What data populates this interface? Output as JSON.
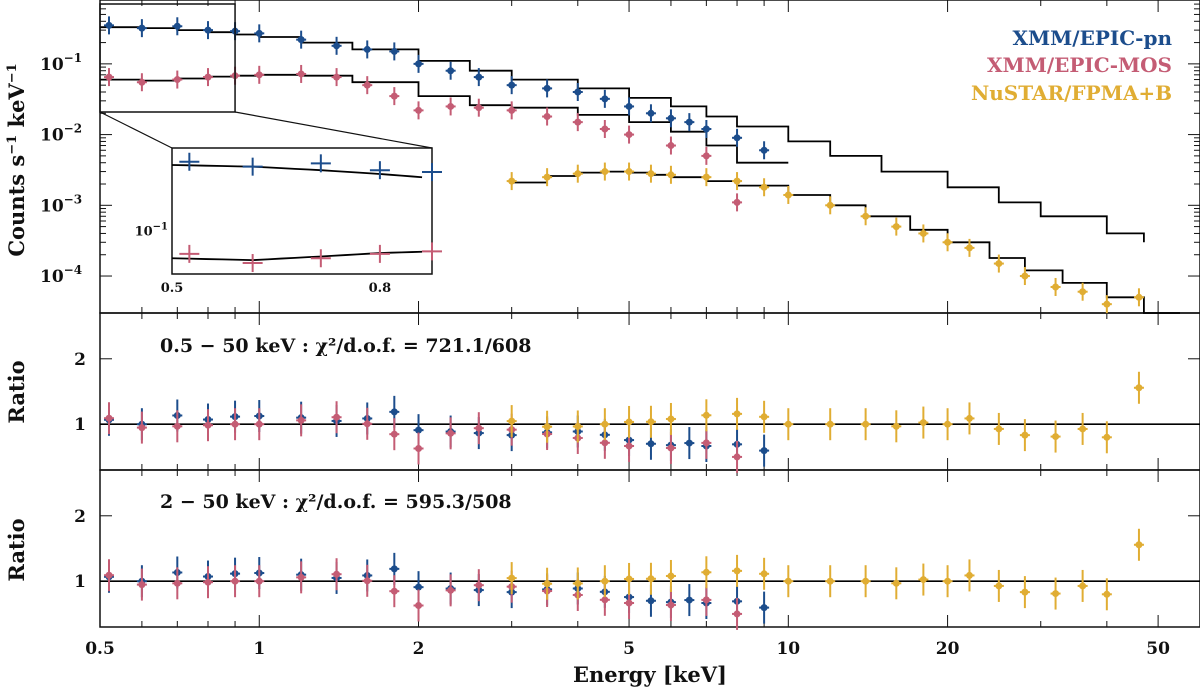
{
  "chart_data": {
    "type": "scatter",
    "xlabel": "Energy [keV]",
    "xscale": "log",
    "xlim": [
      0.5,
      60
    ],
    "x_tick_labels": [
      "0.5",
      "1",
      "2",
      "5",
      "10",
      "20",
      "50"
    ],
    "colors": {
      "pn": "#1c4d8c",
      "mos": "#c45c74",
      "nustar": "#e0ad33",
      "model": "#000000"
    },
    "top_panel": {
      "ylabel_main": "Counts s",
      "ylabel_exp1": "−1",
      "ylabel_mid": " keV",
      "ylabel_exp2": "−1",
      "yscale": "log",
      "ylim": [
        3e-05,
        0.8
      ],
      "y_tick_labels": [
        {
          "base": "10",
          "exp": "−1"
        },
        {
          "base": "10",
          "exp": "−2"
        },
        {
          "base": "10",
          "exp": "−3"
        },
        {
          "base": "10",
          "exp": "−4"
        }
      ],
      "legend": [
        "XMM/EPIC-pn",
        "XMM/EPIC-MOS",
        "NuSTAR/FPMA+B"
      ],
      "series": [
        {
          "name": "XMM/EPIC-pn",
          "key": "pn",
          "x": [
            0.52,
            0.6,
            0.7,
            0.8,
            0.9,
            1.0,
            1.2,
            1.4,
            1.6,
            1.8,
            2.0,
            2.3,
            2.6,
            3.0,
            3.5,
            4.0,
            4.5,
            5.0,
            5.5,
            6.0,
            6.5,
            7.0,
            8.0,
            9.0
          ],
          "y": [
            0.35,
            0.32,
            0.34,
            0.3,
            0.29,
            0.27,
            0.22,
            0.18,
            0.16,
            0.15,
            0.1,
            0.08,
            0.065,
            0.05,
            0.045,
            0.04,
            0.032,
            0.025,
            0.02,
            0.017,
            0.015,
            0.012,
            0.009,
            0.006
          ]
        },
        {
          "name": "XMM/EPIC-MOS",
          "key": "mos",
          "x": [
            0.52,
            0.6,
            0.7,
            0.8,
            0.9,
            1.0,
            1.2,
            1.4,
            1.6,
            1.8,
            2.0,
            2.3,
            2.6,
            3.0,
            3.5,
            4.0,
            4.5,
            5.0,
            6.0,
            7.0,
            8.0
          ],
          "y": [
            0.065,
            0.055,
            0.06,
            0.065,
            0.068,
            0.07,
            0.072,
            0.065,
            0.05,
            0.035,
            0.022,
            0.025,
            0.024,
            0.022,
            0.018,
            0.015,
            0.012,
            0.01,
            0.007,
            0.005,
            0.0011
          ]
        },
        {
          "name": "NuSTAR/FPMA+B",
          "key": "nustar",
          "x": [
            3.0,
            3.5,
            4.0,
            4.5,
            5.0,
            5.5,
            6.0,
            7.0,
            8.0,
            9.0,
            10,
            12,
            14,
            16,
            18,
            20,
            22,
            25,
            28,
            32,
            36,
            40,
            46
          ],
          "y": [
            0.0022,
            0.0025,
            0.0028,
            0.003,
            0.003,
            0.0028,
            0.0027,
            0.0025,
            0.0022,
            0.0018,
            0.0014,
            0.001,
            0.0007,
            0.0005,
            0.0004,
            0.0003,
            0.00025,
            0.00015,
            0.0001,
            7e-05,
            6e-05,
            4e-05,
            5e-05
          ]
        }
      ],
      "model": {
        "x": [
          0.5,
          0.6,
          0.7,
          0.8,
          0.9,
          1.0,
          1.2,
          1.5,
          2.0,
          2.5,
          3.0,
          4.0,
          5.0,
          6.0,
          7.0,
          8.0,
          10,
          12,
          15,
          20,
          25,
          30,
          40,
          47
        ],
        "pn": [
          0.33,
          0.32,
          0.3,
          0.28,
          0.26,
          0.24,
          0.2,
          0.16,
          0.11,
          0.08,
          0.06,
          0.045,
          0.033,
          0.025,
          0.018,
          0.013,
          0.008,
          0.005,
          0.003,
          0.0018,
          0.0011,
          0.0007,
          0.0004,
          0.0003
        ],
        "mos": [
          0.06,
          0.058,
          0.062,
          0.066,
          0.068,
          0.07,
          0.068,
          0.055,
          0.035,
          0.026,
          0.024,
          0.019,
          0.015,
          0.011,
          0.007,
          0.004
        ],
        "nustar": [
          0.0021,
          0.0026,
          0.0029,
          0.003,
          0.0029,
          0.0027,
          0.0025,
          0.0022,
          0.0019,
          0.0014,
          0.001,
          0.0007,
          0.00045,
          0.0003,
          0.00018,
          0.00012,
          8e-05,
          5e-05,
          3e-05
        ]
      },
      "inset": {
        "xlim": [
          0.5,
          0.9
        ],
        "x_tick_labels": [
          "0.5",
          "0.8"
        ],
        "y_tick_label": {
          "base": "10",
          "exp": "−1"
        }
      }
    },
    "ratio_panels": [
      {
        "ylabel": "Ratio",
        "ylim": [
          0.3,
          2.7
        ],
        "y_tick_labels": [
          "1",
          "2"
        ],
        "annotation": "0.5 − 50 keV : χ²/d.o.f. = 721.1/608"
      },
      {
        "ylabel": "Ratio",
        "ylim": [
          0.3,
          2.7
        ],
        "y_tick_labels": [
          "1",
          "2"
        ],
        "annotation": "2 − 50 keV : χ²/d.o.f. = 595.3/508"
      }
    ]
  }
}
